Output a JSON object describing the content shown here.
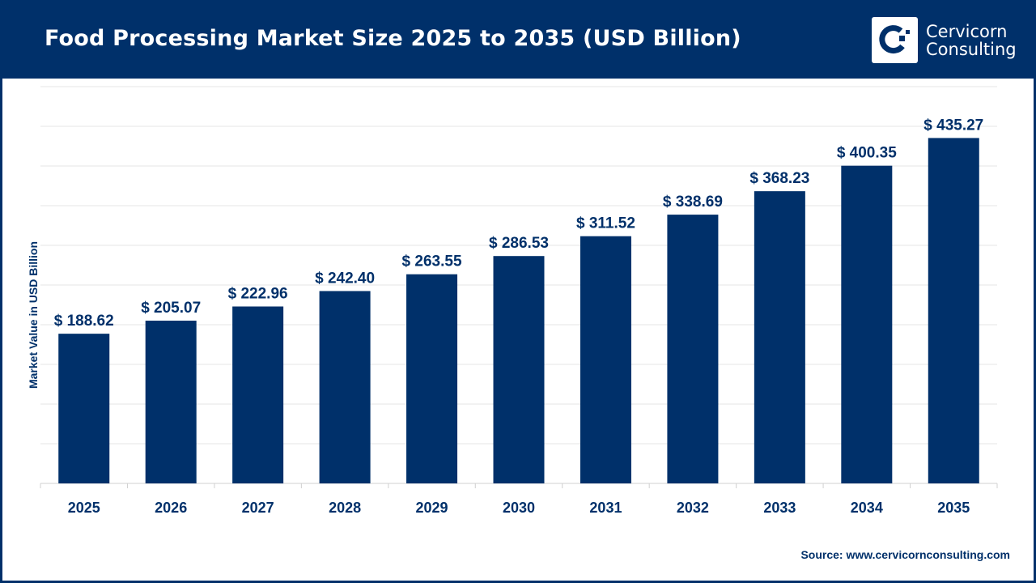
{
  "header": {
    "title": "Food Processing Market Size 2025 to 2035 (USD Billion)"
  },
  "logo": {
    "line1": "Cervicorn",
    "line2": "Consulting"
  },
  "source": "Source: www.cervicornconsulting.com",
  "colors": {
    "bar": "#00306a",
    "header": "#00306a",
    "grid": "#e4e4e4"
  },
  "chart_data": {
    "type": "bar",
    "title": "Food Processing Market Size 2025 to 2035 (USD Billion)",
    "xlabel": "",
    "ylabel": "Market Value in USD Billion",
    "categories": [
      "2025",
      "2026",
      "2027",
      "2028",
      "2029",
      "2030",
      "2031",
      "2032",
      "2033",
      "2034",
      "2035"
    ],
    "values": [
      188.62,
      205.07,
      222.96,
      242.4,
      263.55,
      286.53,
      311.52,
      338.69,
      368.23,
      400.35,
      435.27
    ],
    "labels": [
      "$ 188.62",
      "$ 205.07",
      "$ 222.96",
      "$ 242.40",
      "$ 263.55",
      "$ 286.53",
      "$ 311.52",
      "$ 338.69",
      "$ 368.23",
      "$ 400.35",
      "$ 435.27"
    ],
    "ylim": [
      0,
      500
    ],
    "grid": true,
    "legend": "none"
  }
}
